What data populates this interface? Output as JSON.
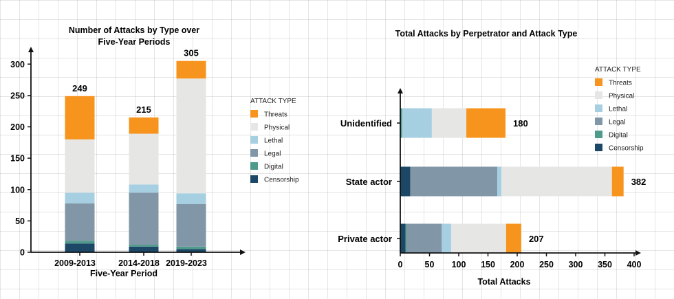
{
  "colors": {
    "Threats": "#f7941d",
    "Physical": "#e6e7e5",
    "Lethal": "#a6cfe2",
    "Legal": "#8196a6",
    "Digital": "#4e9a8b",
    "Censorship": "#1c4766",
    "axis": "#111111"
  },
  "chart_data": [
    {
      "type": "bar",
      "stacked": true,
      "orientation": "vertical",
      "title": [
        "Number of Attacks by Type over",
        "Five-Year Periods"
      ],
      "xlabel": "Five-Year Period",
      "ylabel": "",
      "ylim": [
        0,
        320
      ],
      "yticks": [
        0,
        50,
        100,
        150,
        200,
        250,
        300
      ],
      "categories": [
        "2009-2013",
        "2014-2018",
        "2019-2023"
      ],
      "totals": [
        249,
        215,
        305
      ],
      "legend_title": "ATTACK TYPE",
      "legend_position": "right",
      "series": [
        {
          "name": "Censorship",
          "values": [
            14,
            9,
            5
          ]
        },
        {
          "name": "Digital",
          "values": [
            4,
            3,
            4
          ]
        },
        {
          "name": "Legal",
          "values": [
            60,
            83,
            68
          ]
        },
        {
          "name": "Lethal",
          "values": [
            17,
            13,
            17
          ]
        },
        {
          "name": "Physical",
          "values": [
            85,
            81,
            183
          ]
        },
        {
          "name": "Threats",
          "values": [
            69,
            26,
            28
          ]
        }
      ]
    },
    {
      "type": "bar",
      "stacked": true,
      "orientation": "horizontal",
      "title": "Total Attacks by Perpetrator and Attack Type",
      "xlabel": "Total Attacks",
      "ylabel": "",
      "xlim": [
        0,
        400
      ],
      "xticks": [
        0,
        50,
        100,
        150,
        200,
        250,
        300,
        350,
        400
      ],
      "categories": [
        "Unidentified",
        "State actor",
        "Private actor"
      ],
      "totals": [
        180,
        382,
        207
      ],
      "legend_title": "ATTACK TYPE",
      "legend_position": "top-right",
      "series": [
        {
          "name": "Censorship",
          "values": [
            0,
            17,
            9
          ]
        },
        {
          "name": "Digital",
          "values": [
            3,
            0,
            2
          ]
        },
        {
          "name": "Legal",
          "values": [
            0,
            149,
            60
          ]
        },
        {
          "name": "Lethal",
          "values": [
            51,
            7,
            16
          ]
        },
        {
          "name": "Physical",
          "values": [
            59,
            189,
            94
          ]
        },
        {
          "name": "Threats",
          "values": [
            67,
            20,
            26
          ]
        }
      ]
    }
  ]
}
